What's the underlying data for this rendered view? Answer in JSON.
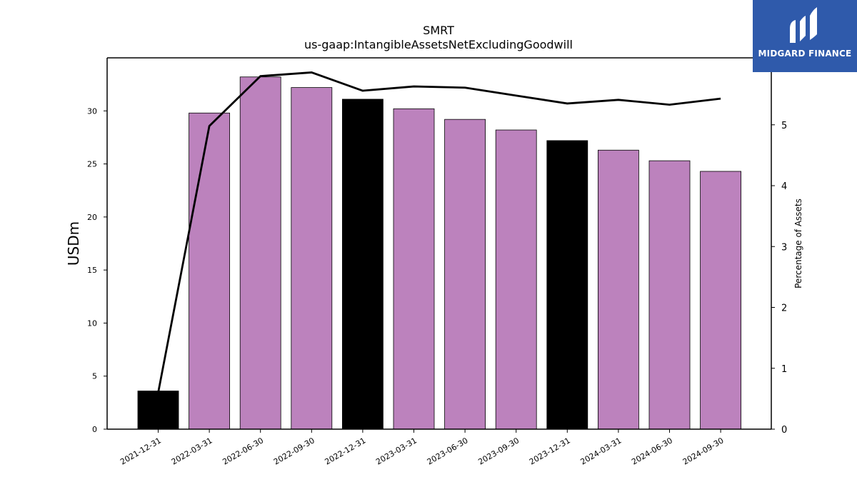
{
  "chart_data": {
    "type": "bar",
    "title": "SMRT",
    "subtitle": "us-gaap:IntangibleAssetsNetExcludingGoodwill",
    "ylabel": "USDm",
    "y2label": "Percentage of Assets",
    "categories": [
      "2021-12-31",
      "2022-03-31",
      "2022-06-30",
      "2022-09-30",
      "2022-12-31",
      "2023-03-31",
      "2023-06-30",
      "2023-09-30",
      "2023-12-31",
      "2024-03-31",
      "2024-06-30",
      "2024-09-30"
    ],
    "values": [
      3.6,
      29.8,
      33.2,
      32.2,
      31.1,
      30.2,
      29.2,
      28.2,
      27.2,
      26.3,
      25.3,
      24.3
    ],
    "bar_colors": [
      "#000000",
      "#bc82bd",
      "#bc82bd",
      "#bc82bd",
      "#000000",
      "#bc82bd",
      "#bc82bd",
      "#bc82bd",
      "#000000",
      "#bc82bd",
      "#bc82bd",
      "#bc82bd"
    ],
    "line_values": [
      0.6,
      4.98,
      5.8,
      5.86,
      5.56,
      5.63,
      5.61,
      5.48,
      5.35,
      5.41,
      5.33,
      5.43
    ],
    "ylim": [
      0,
      35
    ],
    "y2lim": [
      0,
      6.1
    ],
    "yticks": [
      0,
      5,
      10,
      15,
      20,
      25,
      30
    ],
    "y2ticks": [
      0,
      1,
      2,
      3,
      4,
      5
    ],
    "line_color": "#000000",
    "grid": false
  },
  "logo": {
    "text": "MIDGARD FINANCE",
    "color": "#2f5aab"
  }
}
